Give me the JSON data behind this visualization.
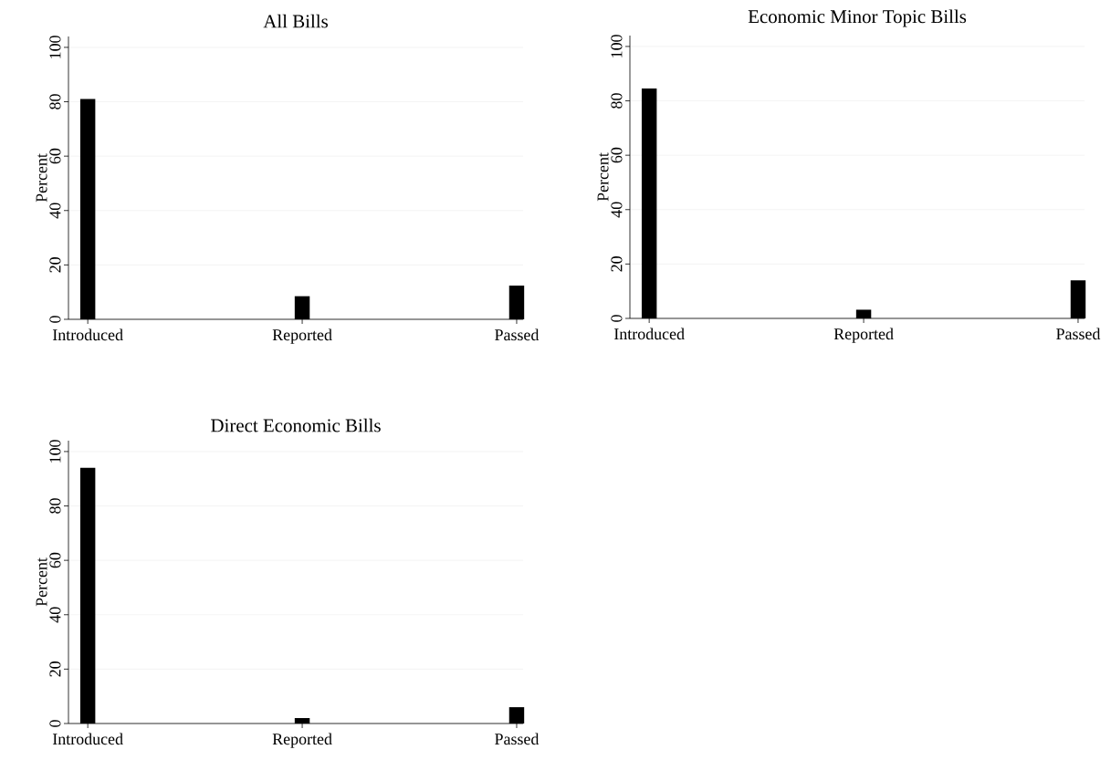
{
  "chart_data": [
    {
      "type": "bar",
      "title": "All Bills",
      "ylabel": "Percent",
      "categories": [
        "Introduced",
        "Reported",
        "Passed"
      ],
      "values": [
        81,
        8.5,
        12.4
      ],
      "color": "#000000",
      "ylim": [
        0,
        104
      ],
      "yticks": [
        0,
        20,
        40,
        60,
        80,
        100
      ],
      "grid": "y"
    },
    {
      "type": "bar",
      "title": "Economic Minor Topic Bills",
      "ylabel": "Percent",
      "categories": [
        "Introduced",
        "Reported",
        "Passed"
      ],
      "values": [
        84.5,
        3.2,
        14
      ],
      "color": "#000000",
      "ylim": [
        0,
        104
      ],
      "yticks": [
        0,
        20,
        40,
        60,
        80,
        100
      ],
      "grid": "y"
    },
    {
      "type": "bar",
      "title": "Direct Economic Bills",
      "ylabel": "Percent",
      "categories": [
        "Introduced",
        "Reported",
        "Passed"
      ],
      "values": [
        94,
        2,
        6
      ],
      "color": "#000000",
      "ylim": [
        0,
        104
      ],
      "yticks": [
        0,
        20,
        40,
        60,
        80,
        100
      ],
      "grid": "y"
    }
  ]
}
